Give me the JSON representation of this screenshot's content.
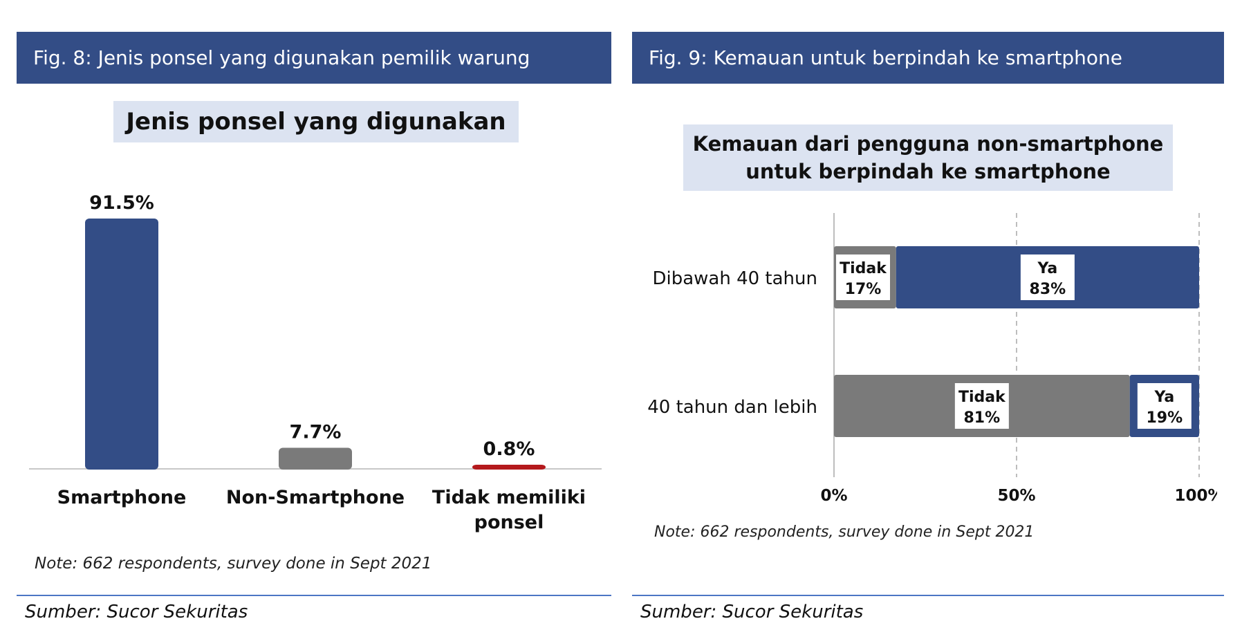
{
  "fig8": {
    "header": "Fig. 8: Jenis ponsel yang digunakan pemilik warung",
    "note": "Note: 662 respondents, survey done in Sept 2021",
    "source": "Sumber: Sucor Sekuritas"
  },
  "fig9": {
    "header": "Fig. 9: Kemauan untuk berpindah ke smartphone",
    "note": "Note: 662 respondents, survey done in Sept 2021",
    "source": "Sumber: Sucor Sekuritas"
  },
  "chart_data": [
    {
      "type": "bar",
      "title": "Jenis ponsel yang digunakan",
      "categories": [
        "Smartphone",
        "Non-Smartphone",
        "Tidak memiliki ponsel"
      ],
      "values": [
        91.5,
        7.7,
        0.8
      ],
      "value_labels": [
        "91.5%",
        "7.7%",
        "0.8%"
      ],
      "colors": [
        "#334d86",
        "#7a7a7a",
        "#b4191c"
      ],
      "ylim": [
        0,
        100
      ],
      "grid": false,
      "legend": "none"
    },
    {
      "type": "bar",
      "orientation": "horizontal-stacked",
      "title_lines": [
        "Kemauan dari pengguna non-smartphone",
        "untuk berpindah ke smartphone"
      ],
      "categories": [
        "Dibawah 40 tahun",
        "40 tahun dan lebih"
      ],
      "series": [
        {
          "name": "Tidak",
          "values": [
            17,
            81
          ],
          "value_labels": [
            "17%",
            "81%"
          ],
          "color": "#7a7a7a"
        },
        {
          "name": "Ya",
          "values": [
            83,
            19
          ],
          "value_labels": [
            "83%",
            "19%"
          ],
          "color": "#334d86"
        }
      ],
      "xlim": [
        0,
        100
      ],
      "xticks": [
        "0%",
        "50%",
        "100%"
      ],
      "grid": "dashed vertical",
      "legend": "none"
    }
  ]
}
